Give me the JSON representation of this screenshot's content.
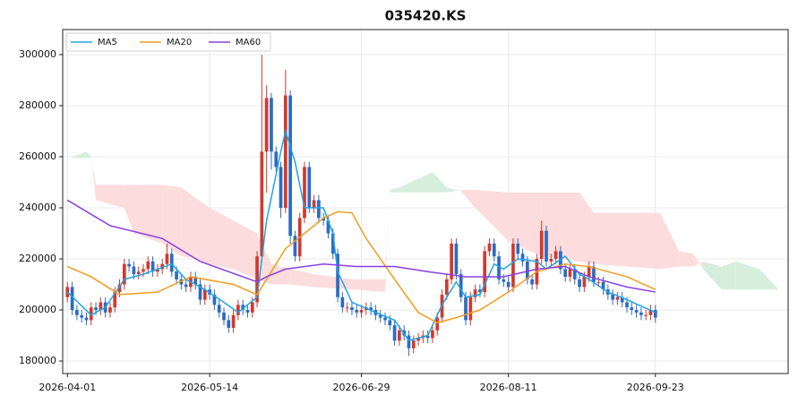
{
  "chart_data": {
    "type": "candlestick",
    "title": "035420.KS",
    "xlim": [
      -1,
      152
    ],
    "ylim": [
      175100,
      309800
    ],
    "xticks": [
      {
        "value": 0,
        "label": "2026-04-01"
      },
      {
        "value": 30,
        "label": "2026-05-14"
      },
      {
        "value": 62,
        "label": "2026-06-29"
      },
      {
        "value": 93,
        "label": "2026-08-11"
      },
      {
        "value": 124,
        "label": "2026-09-23"
      }
    ],
    "yticks": [
      180000,
      200000,
      220000,
      240000,
      260000,
      280000,
      300000
    ],
    "grid": true,
    "legend": "upper left",
    "up_color": "#d03a2f",
    "down_color": "#2b6cc4",
    "open": [
      205000,
      209000,
      200000,
      198000,
      197000,
      196000,
      201000,
      200000,
      203000,
      199000,
      201000,
      207000,
      210000,
      218000,
      217000,
      214000,
      215000,
      216000,
      219000,
      215000,
      216000,
      218000,
      222000,
      215000,
      212000,
      210000,
      209000,
      213000,
      210000,
      204000,
      208000,
      206000,
      202000,
      199000,
      196000,
      193000,
      198000,
      202000,
      200000,
      199000,
      203000,
      221000,
      262000,
      283000,
      262000,
      256000,
      240000,
      284000,
      229000,
      221000,
      236000,
      256000,
      240000,
      243000,
      236000,
      235000,
      230000,
      222000,
      205000,
      201000,
      201000,
      200000,
      199000,
      200000,
      201000,
      200000,
      198000,
      197000,
      196000,
      194000,
      188000,
      192000,
      190000,
      185000,
      188000,
      189000,
      190000,
      189000,
      192000,
      197000,
      206000,
      212000,
      226000,
      214000,
      205000,
      196000,
      205000,
      208000,
      207000,
      223000,
      226000,
      221000,
      212000,
      211000,
      209000,
      226000,
      222000,
      219000,
      212000,
      210000,
      220000,
      231000,
      219000,
      220000,
      223000,
      216000,
      213000,
      216000,
      212000,
      209000,
      213000,
      217000,
      211000,
      211000,
      208000,
      206000,
      204000,
      205000,
      203000,
      201000,
      200000,
      199000,
      198000,
      198000,
      200000
    ],
    "high": [
      211000,
      211000,
      202000,
      200000,
      199000,
      203000,
      203000,
      205000,
      205000,
      203000,
      209000,
      212000,
      220000,
      220000,
      219000,
      217000,
      218000,
      221000,
      221000,
      218000,
      220000,
      226000,
      224000,
      217000,
      214000,
      212000,
      215000,
      215000,
      212000,
      210000,
      210000,
      208000,
      204000,
      201000,
      198000,
      200000,
      204000,
      204000,
      202000,
      205000,
      223000,
      300000,
      288000,
      285000,
      264000,
      258000,
      294000,
      286000,
      231000,
      238000,
      258000,
      258000,
      245000,
      245000,
      238000,
      237000,
      232000,
      224000,
      207000,
      203000,
      203000,
      202000,
      202000,
      203000,
      203000,
      202000,
      200000,
      199000,
      198000,
      196000,
      194000,
      194000,
      192000,
      190000,
      191000,
      192000,
      192000,
      194000,
      199000,
      208000,
      214000,
      228000,
      228000,
      216000,
      207000,
      207000,
      210000,
      210000,
      225000,
      228000,
      228000,
      223000,
      214000,
      213000,
      228000,
      228000,
      224000,
      221000,
      214000,
      222000,
      235000,
      233000,
      222000,
      225000,
      225000,
      218000,
      218000,
      218000,
      214000,
      215000,
      219000,
      219000,
      213000,
      213000,
      210000,
      208000,
      207000,
      207000,
      205000,
      203000,
      202000,
      201000,
      200000,
      202000,
      202000
    ],
    "low": [
      203000,
      198000,
      196000,
      195000,
      194000,
      194000,
      198000,
      198000,
      197000,
      197000,
      199000,
      205000,
      208000,
      215000,
      212000,
      212000,
      213000,
      214000,
      213000,
      213000,
      214000,
      216000,
      213000,
      210000,
      208000,
      207000,
      207000,
      208000,
      202000,
      202000,
      204000,
      200000,
      197000,
      194000,
      191000,
      191000,
      196000,
      198000,
      197000,
      197000,
      201000,
      219000,
      246000,
      255000,
      254000,
      236000,
      238000,
      226000,
      219000,
      219000,
      234000,
      238000,
      238000,
      234000,
      233000,
      228000,
      220000,
      203000,
      199000,
      199000,
      198000,
      197000,
      197000,
      198000,
      198000,
      196000,
      195000,
      194000,
      192000,
      186000,
      186000,
      188000,
      182000,
      183000,
      186000,
      187000,
      187000,
      187000,
      190000,
      195000,
      204000,
      210000,
      212000,
      203000,
      194000,
      194000,
      203000,
      205000,
      205000,
      221000,
      219000,
      210000,
      209000,
      207000,
      207000,
      220000,
      217000,
      210000,
      208000,
      208000,
      218000,
      217000,
      217000,
      218000,
      214000,
      211000,
      211000,
      210000,
      207000,
      207000,
      211000,
      209000,
      209000,
      206000,
      204000,
      202000,
      202000,
      201000,
      199000,
      198000,
      197000,
      196000,
      196000,
      196000,
      195000
    ],
    "close": [
      209000,
      200000,
      198000,
      197000,
      196000,
      201000,
      200000,
      203000,
      199000,
      201000,
      207000,
      210000,
      218000,
      217000,
      214000,
      215000,
      216000,
      219000,
      215000,
      216000,
      218000,
      222000,
      215000,
      212000,
      210000,
      209000,
      213000,
      210000,
      204000,
      208000,
      206000,
      202000,
      199000,
      196000,
      193000,
      198000,
      202000,
      200000,
      199000,
      203000,
      221000,
      262000,
      283000,
      262000,
      256000,
      240000,
      284000,
      229000,
      221000,
      236000,
      256000,
      240000,
      243000,
      236000,
      235000,
      230000,
      222000,
      205000,
      201000,
      201000,
      200000,
      199000,
      200000,
      201000,
      200000,
      198000,
      197000,
      196000,
      194000,
      188000,
      192000,
      190000,
      185000,
      188000,
      189000,
      190000,
      189000,
      192000,
      197000,
      206000,
      212000,
      226000,
      214000,
      205000,
      196000,
      205000,
      208000,
      207000,
      223000,
      226000,
      221000,
      212000,
      211000,
      209000,
      226000,
      222000,
      219000,
      212000,
      210000,
      220000,
      231000,
      219000,
      220000,
      223000,
      216000,
      213000,
      216000,
      212000,
      209000,
      213000,
      217000,
      211000,
      211000,
      208000,
      206000,
      204000,
      205000,
      203000,
      201000,
      200000,
      199000,
      198000,
      198000,
      200000,
      197000
    ],
    "series": [
      {
        "name": "MA5",
        "color": "#1ea5e3",
        "x": [
          0,
          5,
          8,
          12,
          16,
          22,
          25,
          29,
          33,
          36,
          40,
          42,
          45,
          46,
          48,
          50,
          54,
          56,
          57,
          60,
          65,
          69,
          72,
          76,
          79,
          82,
          84,
          87,
          90,
          92,
          95,
          99,
          101,
          105,
          108,
          110,
          114,
          118,
          124
        ],
        "values": [
          207000,
          198000,
          201000,
          212000,
          214000,
          218000,
          212000,
          208000,
          203000,
          199000,
          205000,
          235000,
          262000,
          270000,
          258000,
          240000,
          240000,
          230000,
          215000,
          203000,
          199000,
          196000,
          188000,
          190000,
          202000,
          211000,
          205000,
          206000,
          218000,
          216000,
          220000,
          219000,
          216000,
          221000,
          214000,
          212000,
          207000,
          204000,
          199000
        ]
      },
      {
        "name": "MA20",
        "color": "#f39c1f",
        "x": [
          0,
          5,
          11,
          19,
          26,
          35,
          40,
          42,
          46,
          50,
          54,
          57,
          60,
          63,
          69,
          74,
          78,
          82,
          87,
          93,
          99,
          105,
          110,
          118,
          124
        ],
        "values": [
          217000,
          213000,
          206000,
          207000,
          213000,
          210000,
          206000,
          212000,
          224000,
          230000,
          236000,
          238500,
          238000,
          228000,
          212000,
          199000,
          195000,
          197000,
          200000,
          207000,
          215000,
          218000,
          217000,
          213000,
          208000
        ]
      },
      {
        "name": "MA60",
        "color": "#8a3fe0",
        "x": [
          0,
          9,
          20,
          28,
          40,
          42,
          46,
          54,
          61,
          69,
          76,
          84,
          92,
          99,
          105,
          110,
          118,
          124
        ],
        "values": [
          243000,
          233000,
          228000,
          219000,
          211000,
          213000,
          216000,
          218000,
          217000,
          217000,
          215000,
          213000,
          213000,
          216000,
          217000,
          213000,
          209000,
          207000
        ]
      }
    ],
    "cloud": {
      "up_color": "#d6efdd",
      "down_color": "#fcdcdc",
      "x": [
        1,
        4,
        5,
        6,
        12,
        14,
        20,
        24,
        27,
        30,
        35,
        40,
        43,
        47,
        52,
        60,
        67,
        68,
        70,
        77,
        80,
        83,
        86,
        93,
        100,
        108,
        111,
        125,
        129,
        132,
        134,
        138,
        141,
        146,
        150
      ],
      "span_a": [
        260000,
        262000,
        260000,
        243000,
        240000,
        230000,
        226000,
        221000,
        220000,
        218000,
        216000,
        212000,
        210000,
        210000,
        209000,
        208000,
        207000,
        247000,
        248000,
        254000,
        248000,
        246500,
        240000,
        227000,
        221000,
        219000,
        218000,
        216000,
        217000,
        217000,
        219000,
        217000,
        219000,
        216000,
        208000
      ],
      "span_b": [
        259500,
        259500,
        259500,
        249000,
        249000,
        249000,
        249000,
        248000,
        244000,
        240000,
        235000,
        230000,
        218000,
        216000,
        214000,
        212000,
        212000,
        246000,
        246000,
        246000,
        246000,
        247000,
        247000,
        246000,
        246000,
        246000,
        238000,
        238000,
        223000,
        222000,
        216000,
        208000,
        208000,
        208000,
        208000
      ]
    }
  }
}
